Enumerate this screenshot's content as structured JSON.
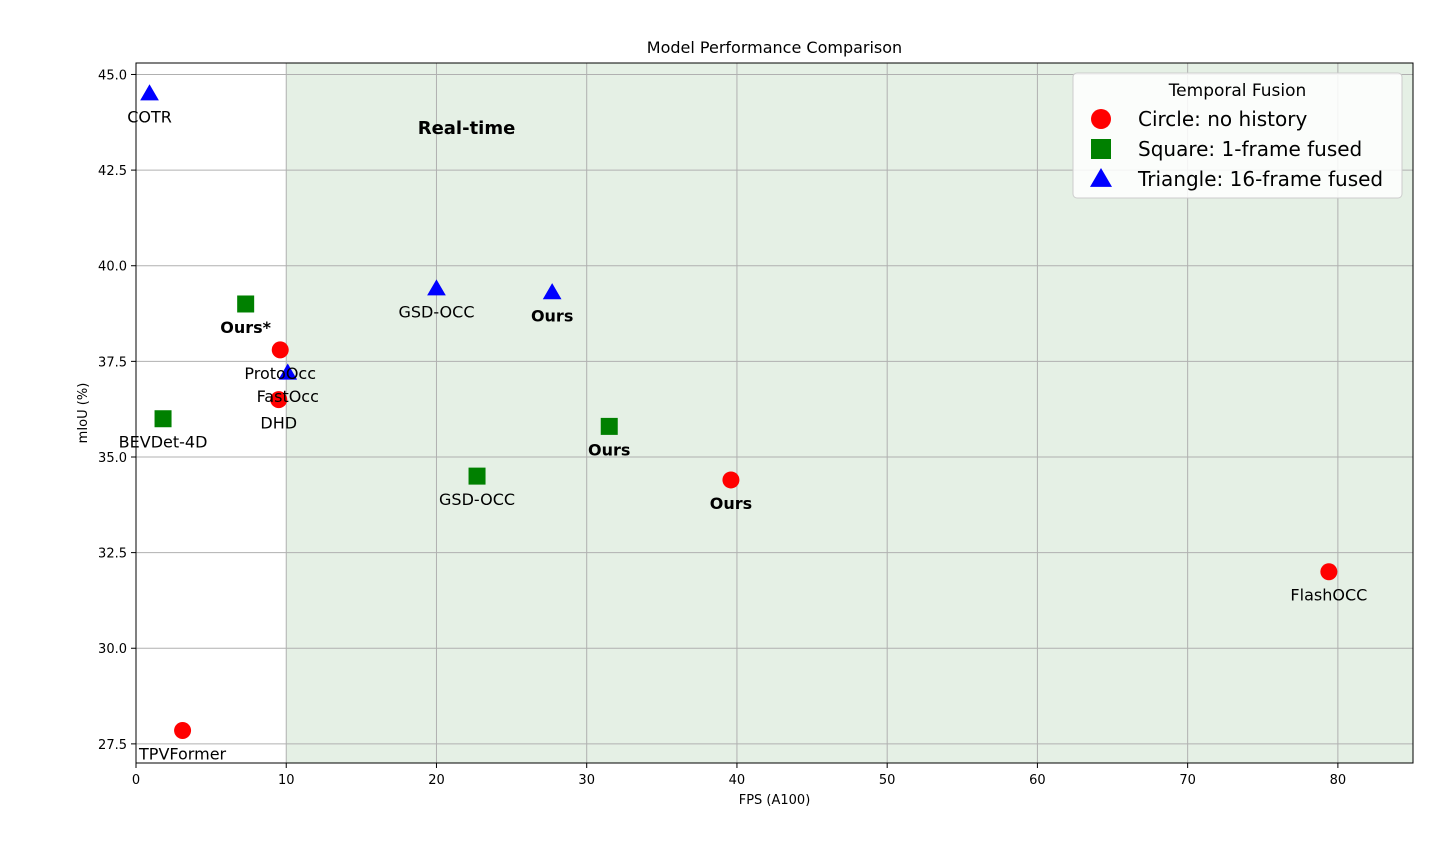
{
  "chart_data": {
    "type": "scatter",
    "title": "Model Performance Comparison",
    "xlabel": "FPS (A100)",
    "ylabel": "mIoU (%)",
    "xlim": [
      0,
      85
    ],
    "ylim": [
      27,
      45.3
    ],
    "xticks": [
      0,
      10,
      20,
      30,
      40,
      50,
      60,
      70,
      80
    ],
    "yticks": [
      27.5,
      30.0,
      32.5,
      35.0,
      37.5,
      40.0,
      42.5,
      45.0
    ],
    "grid": true,
    "shaded_region": {
      "x_from": 10,
      "x_to": 85,
      "color": "#e5f0e5",
      "label": "Real-time",
      "label_x": 22,
      "label_y": 43.6
    },
    "legend": {
      "title": "Temporal Fusion",
      "placement": "top-right",
      "entries": [
        {
          "shape": "circle",
          "color": "#ff0000",
          "label": "Circle: no history"
        },
        {
          "shape": "square",
          "color": "#008000",
          "label": "Square: 1-frame fused"
        },
        {
          "shape": "triangle",
          "color": "#0000ff",
          "label": "Triangle: 16-frame fused"
        }
      ]
    },
    "points": [
      {
        "name": "COTR",
        "x": 0.9,
        "y": 44.5,
        "shape": "triangle",
        "color": "#0000ff",
        "bold": false
      },
      {
        "name": "Ours*",
        "x": 7.3,
        "y": 39.0,
        "shape": "square",
        "color": "#008000",
        "bold": true
      },
      {
        "name": "ProtoOcc",
        "x": 9.6,
        "y": 37.8,
        "shape": "circle",
        "color": "#ff0000",
        "bold": false
      },
      {
        "name": "FastOcc",
        "x": 10.1,
        "y": 37.2,
        "shape": "triangle",
        "color": "#0000ff",
        "bold": false
      },
      {
        "name": "DHD",
        "x": 9.5,
        "y": 36.5,
        "shape": "circle",
        "color": "#ff0000",
        "bold": false
      },
      {
        "name": "BEVDet-4D",
        "x": 1.8,
        "y": 36.0,
        "shape": "square",
        "color": "#008000",
        "bold": false
      },
      {
        "name": "GSD-OCC",
        "x": 20.0,
        "y": 39.4,
        "shape": "triangle",
        "color": "#0000ff",
        "bold": false
      },
      {
        "name": "Ours",
        "x": 27.7,
        "y": 39.3,
        "shape": "triangle",
        "color": "#0000ff",
        "bold": true
      },
      {
        "name": "Ours",
        "x": 31.5,
        "y": 35.8,
        "shape": "square",
        "color": "#008000",
        "bold": true
      },
      {
        "name": "GSD-OCC",
        "x": 22.7,
        "y": 34.5,
        "shape": "square",
        "color": "#008000",
        "bold": false
      },
      {
        "name": "Ours",
        "x": 39.6,
        "y": 34.4,
        "shape": "circle",
        "color": "#ff0000",
        "bold": true
      },
      {
        "name": "FlashOCC",
        "x": 79.4,
        "y": 32.0,
        "shape": "circle",
        "color": "#ff0000",
        "bold": false
      },
      {
        "name": "TPVFormer",
        "x": 3.1,
        "y": 27.85,
        "shape": "circle",
        "color": "#ff0000",
        "bold": false
      }
    ]
  }
}
